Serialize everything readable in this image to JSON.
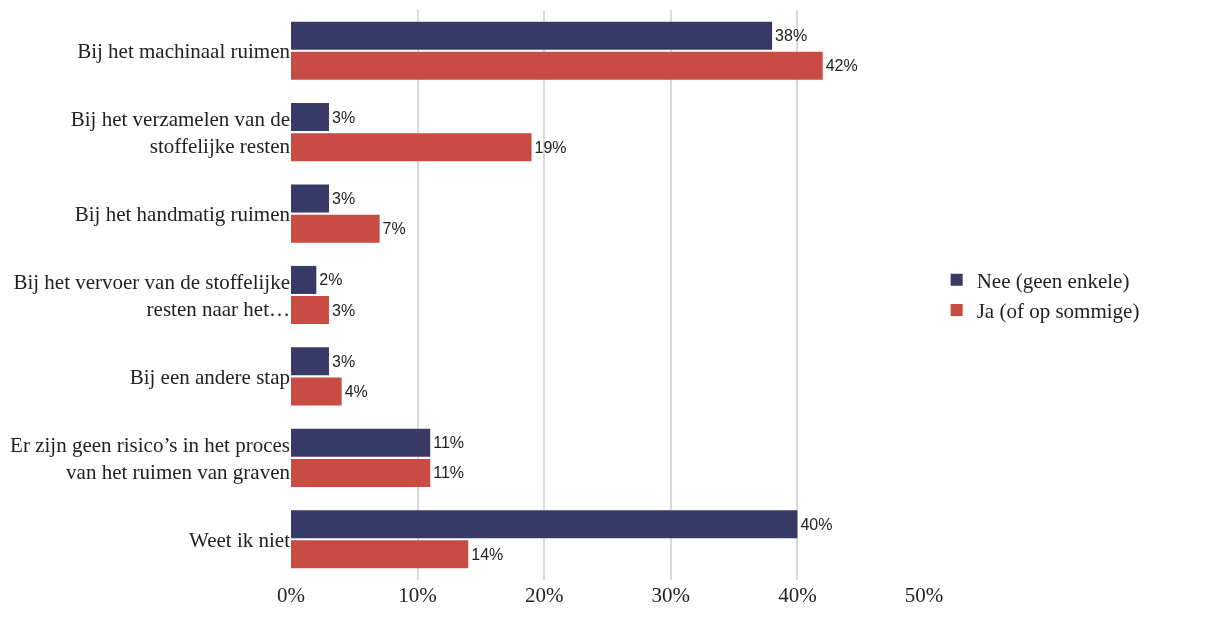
{
  "chart_data": {
    "type": "bar",
    "orientation": "horizontal",
    "categories": [
      "Bij het machinaal ruimen",
      "Bij het verzamelen van de stoffelijke resten",
      "Bij het handmatig ruimen",
      "Bij het vervoer van de stoffelijke resten naar het…",
      "Bij een andere stap",
      "Er zijn geen risico’s in het proces van het ruimen van graven",
      "Weet ik niet"
    ],
    "series": [
      {
        "name": "Nee (geen enkele)",
        "color": "#383a66",
        "values": [
          38,
          3,
          3,
          2,
          3,
          11,
          40
        ],
        "value_labels": [
          "38%",
          "3%",
          "3%",
          "2%",
          "3%",
          "11%",
          "40%"
        ]
      },
      {
        "name": "Ja (of op sommige)",
        "color": "#c94c44",
        "values": [
          42,
          19,
          7,
          3,
          4,
          11,
          14
        ],
        "value_labels": [
          "42%",
          "19%",
          "7%",
          "3%",
          "4%",
          "11%",
          "14%"
        ]
      }
    ],
    "xlim": [
      0,
      50
    ],
    "xticks": [
      {
        "value": 0,
        "label": "0%"
      },
      {
        "value": 10,
        "label": "10%"
      },
      {
        "value": 20,
        "label": "20%"
      },
      {
        "value": 30,
        "label": "30%"
      },
      {
        "value": 40,
        "label": "40%"
      },
      {
        "value": 50,
        "label": "50%"
      }
    ],
    "grid": "x",
    "legend": "right"
  }
}
